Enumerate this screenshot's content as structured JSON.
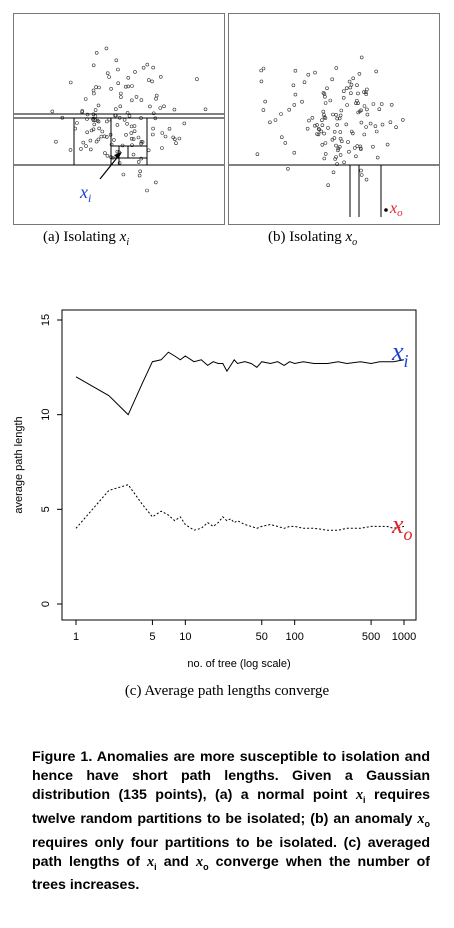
{
  "panel_a": {
    "point_label": "x",
    "point_subscript": "i",
    "caption_prefix": "(a) Isolating",
    "caption_var": "x",
    "caption_sub": "i"
  },
  "panel_b": {
    "point_label": "x",
    "point_subscript": "o",
    "caption_prefix": "(b) Isolating",
    "caption_var": "x",
    "caption_sub": "o"
  },
  "colors": {
    "xi": "#1a3fd6",
    "xo": "#e0202a",
    "line": "#000000"
  },
  "chart_data": {
    "type": "line",
    "xscale": "log",
    "xlabel": "no. of tree (log scale)",
    "ylabel": "average path length",
    "xlim": [
      1,
      1000
    ],
    "ylim": [
      0,
      15
    ],
    "xticks": [
      1,
      5,
      10,
      50,
      100,
      500,
      1000
    ],
    "yticks": [
      0,
      5,
      10,
      15
    ],
    "series": [
      {
        "name": "x",
        "name_sub": "i",
        "style": "solid",
        "x": [
          1,
          2,
          3,
          4,
          5,
          6,
          7,
          8,
          9,
          10,
          12,
          14,
          16,
          18,
          20,
          22,
          24,
          26,
          28,
          30,
          35,
          40,
          45,
          50,
          60,
          70,
          80,
          90,
          100,
          120,
          150,
          200,
          250,
          300,
          400,
          500,
          600,
          700,
          800,
          1000
        ],
        "y": [
          12.0,
          11.0,
          10.0,
          11.6,
          12.8,
          12.9,
          13.3,
          13.1,
          12.9,
          13.1,
          12.8,
          12.9,
          12.6,
          12.8,
          12.7,
          12.7,
          12.3,
          12.6,
          12.9,
          12.7,
          12.8,
          12.7,
          12.5,
          12.8,
          12.7,
          12.8,
          12.6,
          12.8,
          12.7,
          12.8,
          12.7,
          12.7,
          12.8,
          12.7,
          12.8,
          12.7,
          12.8,
          12.8,
          12.8,
          12.9
        ]
      },
      {
        "name": "x",
        "name_sub": "o",
        "style": "dotted",
        "x": [
          1,
          2,
          3,
          4,
          5,
          6,
          7,
          8,
          9,
          10,
          12,
          14,
          16,
          18,
          20,
          22,
          24,
          26,
          28,
          30,
          35,
          40,
          45,
          50,
          60,
          70,
          80,
          90,
          100,
          120,
          150,
          200,
          250,
          300,
          400,
          500,
          600,
          700,
          800,
          1000
        ],
        "y": [
          4.0,
          6.0,
          6.3,
          5.3,
          4.6,
          4.9,
          4.7,
          4.4,
          4.6,
          4.2,
          3.9,
          4.0,
          4.3,
          4.1,
          4.3,
          4.6,
          4.4,
          4.5,
          4.3,
          4.4,
          4.2,
          4.1,
          4.0,
          4.1,
          4.2,
          4.1,
          4.0,
          4.1,
          4.1,
          4.0,
          4.0,
          3.9,
          3.9,
          4.0,
          4.0,
          4.1,
          4.1,
          4.1,
          4.0,
          4.1
        ]
      }
    ],
    "caption": "(c) Average path lengths converge"
  },
  "figure_caption": {
    "part1": "Figure 1. Anomalies are more susceptible to isolation and hence have short path lengths. Given a Gaussian distribution (135 points), (a) a normal point ",
    "var1": "x",
    "sub1": "i",
    "part2": " requires twelve random partitions to be isolated; (b) an anomaly ",
    "var2": "x",
    "sub2": "o",
    "part3": " requires only four partitions to be isolated. (c) averaged path lengths of ",
    "var3": "x",
    "sub3": "i",
    "part4": " and ",
    "var4": "x",
    "sub4": "o",
    "part5": " converge when the number of trees increases."
  }
}
